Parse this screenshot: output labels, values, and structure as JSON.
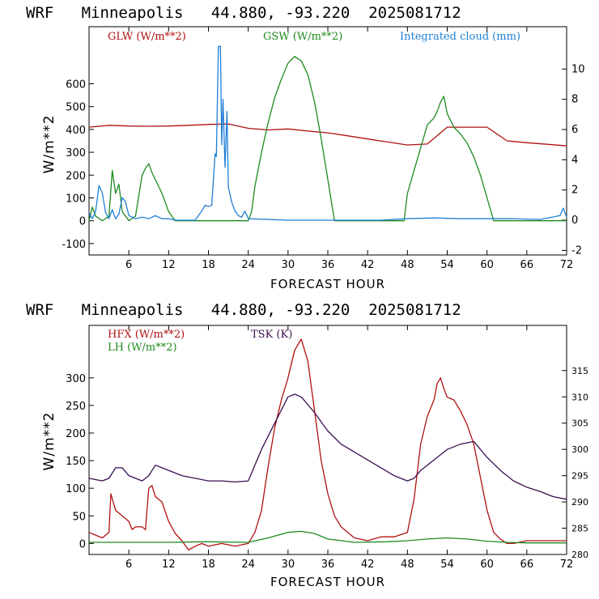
{
  "chart_data": [
    {
      "type": "line",
      "title": "WRF   Minneapolis   44.880, -93.220  2025081712",
      "xlabel": "FORECAST HOUR",
      "ylabel": "W/m**2",
      "xlim": [
        0,
        72
      ],
      "x_ticks": [
        6,
        12,
        18,
        24,
        30,
        36,
        42,
        48,
        54,
        60,
        66,
        72
      ],
      "ylim": [
        -150,
        850
      ],
      "y_ticks": [
        -100,
        0,
        100,
        200,
        300,
        400,
        500,
        600
      ],
      "y2lim": [
        -2.3,
        12.8
      ],
      "y2_ticks": [
        -2,
        0,
        2,
        4,
        6,
        8,
        10
      ],
      "legend_position": "top",
      "series": [
        {
          "name": "GLW (W/m**2)",
          "axis": "left",
          "color": "#b01010",
          "x": [
            0,
            3,
            6,
            9,
            12,
            15,
            18,
            21,
            24,
            27,
            30,
            33,
            36,
            39,
            42,
            45,
            48,
            51,
            54,
            57,
            60,
            63,
            66,
            69,
            72
          ],
          "values": [
            410,
            418,
            415,
            414,
            415,
            418,
            422,
            424,
            405,
            398,
            402,
            393,
            385,
            372,
            358,
            345,
            332,
            336,
            410,
            410,
            410,
            350,
            342,
            335,
            328
          ]
        },
        {
          "name": "GSW (W/m**2)",
          "axis": "left",
          "color": "#1e8a1e",
          "x": [
            0,
            0.5,
            1,
            2,
            3,
            3.5,
            4,
            4.5,
            5,
            6,
            7,
            8,
            8.5,
            9,
            9.5,
            10,
            11,
            12,
            13,
            24,
            24.5,
            25,
            26,
            27,
            28,
            29,
            30,
            31,
            32,
            33,
            34,
            35,
            36,
            37,
            47.5,
            48,
            50,
            51,
            52,
            52.5,
            53,
            53.5,
            54,
            55,
            56,
            57,
            58,
            59,
            60,
            61,
            72
          ],
          "values": [
            0,
            60,
            20,
            0,
            20,
            220,
            120,
            160,
            40,
            0,
            20,
            200,
            230,
            250,
            210,
            180,
            120,
            40,
            0,
            0,
            40,
            150,
            300,
            430,
            540,
            620,
            690,
            720,
            700,
            640,
            520,
            360,
            180,
            0,
            0,
            120,
            320,
            420,
            450,
            480,
            520,
            545,
            470,
            410,
            380,
            340,
            280,
            200,
            100,
            0,
            0
          ]
        },
        {
          "name": "Integrated cloud (mm)",
          "axis": "right",
          "color": "#1f7fd6",
          "x": [
            0,
            0.5,
            1,
            1.5,
            2,
            2.5,
            3,
            3.5,
            4,
            4.5,
            5,
            5.5,
            6,
            7,
            8,
            9,
            10,
            11,
            12,
            13,
            14,
            15,
            16,
            16.5,
            17,
            17.5,
            18,
            18.5,
            19,
            19.2,
            19.5,
            19.8,
            20,
            20.2,
            20.5,
            20.8,
            21,
            21.5,
            22,
            22.5,
            23,
            23.5,
            24,
            30,
            40,
            44,
            48,
            52,
            56,
            60,
            64,
            68,
            71,
            71.5,
            72
          ],
          "values": [
            0.5,
            0.1,
            0.6,
            2.3,
            1.8,
            0.5,
            0.1,
            0.7,
            0.1,
            0.4,
            1.5,
            1.2,
            0.3,
            0.1,
            0.2,
            0.1,
            0.3,
            0.1,
            0.1,
            0,
            0,
            0,
            0,
            0.3,
            0.6,
            1,
            0.9,
            1,
            4.4,
            4.2,
            11.5,
            11.5,
            5,
            8,
            3.5,
            7.2,
            2.2,
            1.2,
            0.6,
            0.3,
            0.2,
            0.6,
            0.1,
            0,
            0,
            0,
            0.1,
            0.15,
            0.1,
            0.1,
            0.1,
            0.05,
            0.3,
            0.8,
            0.2
          ]
        }
      ]
    },
    {
      "type": "line",
      "title": "WRF   Minneapolis   44.880, -93.220  2025081712",
      "xlabel": "FORECAST HOUR",
      "ylabel": "W/m**2",
      "xlim": [
        0,
        72
      ],
      "x_ticks": [
        6,
        12,
        18,
        24,
        30,
        36,
        42,
        48,
        54,
        60,
        66,
        72
      ],
      "ylim": [
        -20,
        395
      ],
      "y_ticks": [
        0,
        50,
        100,
        150,
        200,
        250,
        300
      ],
      "y2lim": [
        280,
        323.6
      ],
      "y2_ticks": [
        280,
        285,
        290,
        295,
        300,
        305,
        310,
        315
      ],
      "legend_position": "top-left",
      "series": [
        {
          "name": "HFX (W/m**2)",
          "axis": "left",
          "color": "#b01010",
          "x": [
            0,
            1,
            2,
            3,
            3.3,
            4,
            5,
            6,
            6.5,
            7,
            8,
            8.5,
            9,
            9.5,
            10,
            11,
            12,
            13,
            14,
            15,
            16,
            17,
            18,
            20,
            22,
            24,
            25,
            26,
            27,
            28,
            29,
            30,
            31,
            32,
            33,
            34,
            35,
            36,
            37,
            38,
            40,
            42,
            44,
            46,
            48,
            49,
            50,
            51,
            52,
            52.5,
            53,
            53.5,
            54,
            55,
            56,
            57,
            58,
            59,
            60,
            61,
            62,
            63,
            64,
            66,
            69,
            72
          ],
          "values": [
            20,
            15,
            10,
            20,
            90,
            60,
            50,
            40,
            25,
            30,
            30,
            25,
            100,
            105,
            85,
            75,
            40,
            18,
            5,
            -12,
            -5,
            0,
            -5,
            0,
            -5,
            0,
            20,
            60,
            140,
            210,
            260,
            300,
            350,
            370,
            330,
            240,
            150,
            90,
            50,
            30,
            10,
            5,
            12,
            12,
            20,
            80,
            180,
            230,
            260,
            290,
            300,
            280,
            265,
            260,
            240,
            215,
            180,
            120,
            60,
            20,
            8,
            0,
            0,
            5,
            5,
            5
          ]
        },
        {
          "name": "LH (W/m**2)",
          "axis": "left",
          "color": "#1e8a1e",
          "x": [
            0,
            6,
            12,
            18,
            24,
            27,
            30,
            32,
            34,
            36,
            40,
            45,
            48,
            51,
            54,
            57,
            60,
            63,
            66,
            72
          ],
          "values": [
            2,
            2,
            2,
            3,
            2,
            10,
            20,
            22,
            18,
            8,
            2,
            3,
            5,
            8,
            10,
            8,
            4,
            2,
            1,
            1
          ]
        },
        {
          "name": "TSK (K)",
          "axis": "right",
          "color": "#3a0f50",
          "x": [
            0,
            2,
            3,
            4,
            5,
            6,
            7,
            8,
            9,
            10,
            11,
            12,
            14,
            16,
            18,
            20,
            22,
            24,
            26,
            28,
            30,
            31,
            32,
            34,
            36,
            38,
            40,
            42,
            44,
            46,
            48,
            49,
            50,
            52,
            54,
            56,
            58,
            60,
            62,
            64,
            66,
            68,
            70,
            72
          ],
          "values": [
            294.5,
            294,
            294.5,
            296.5,
            296.5,
            295,
            294.5,
            294,
            295,
            297,
            296.5,
            296,
            295,
            294.5,
            294,
            294,
            293.8,
            294,
            300,
            305,
            310,
            310.5,
            310,
            307,
            303.5,
            301,
            299.5,
            298,
            296.5,
            295,
            294,
            294.5,
            296,
            298,
            300,
            301,
            301.5,
            298.5,
            296,
            294,
            292.8,
            292,
            291,
            290.5
          ]
        }
      ]
    }
  ]
}
